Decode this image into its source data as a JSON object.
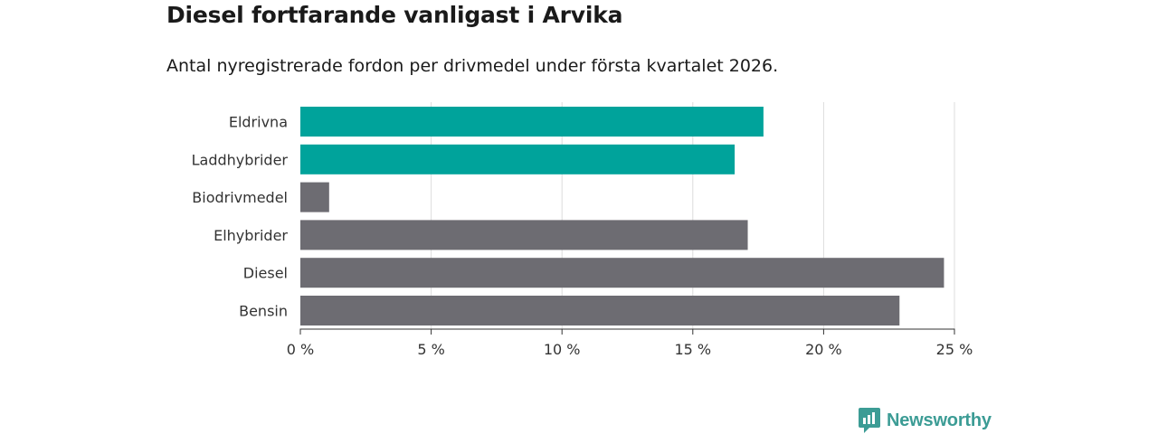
{
  "chart_data": {
    "type": "bar",
    "orientation": "horizontal",
    "title": "Diesel fortfarande vanligast i Arvika",
    "subtitle": "Antal nyregistrerade fordon per drivmedel under första kvartalet 2026.",
    "categories": [
      "Eldrivna",
      "Laddhybrider",
      "Biodrivmedel",
      "Elhybrider",
      "Diesel",
      "Bensin"
    ],
    "values": [
      17.7,
      16.6,
      1.1,
      17.1,
      24.6,
      22.9
    ],
    "unit": "%",
    "xlim": [
      0,
      25
    ],
    "xticks": [
      0,
      5,
      10,
      15,
      20,
      25
    ],
    "xtick_labels": [
      "0 %",
      "5 %",
      "10 %",
      "15 %",
      "20 %",
      "25 %"
    ],
    "bar_colors": [
      "#00a39b",
      "#00a39b",
      "#6d6c72",
      "#6d6c72",
      "#6d6c72",
      "#6d6c72"
    ],
    "gridline_color": "#dcdcdc",
    "axis_color": "#333333"
  },
  "brand": {
    "name": "Newsworthy",
    "color": "#3c9c95"
  }
}
